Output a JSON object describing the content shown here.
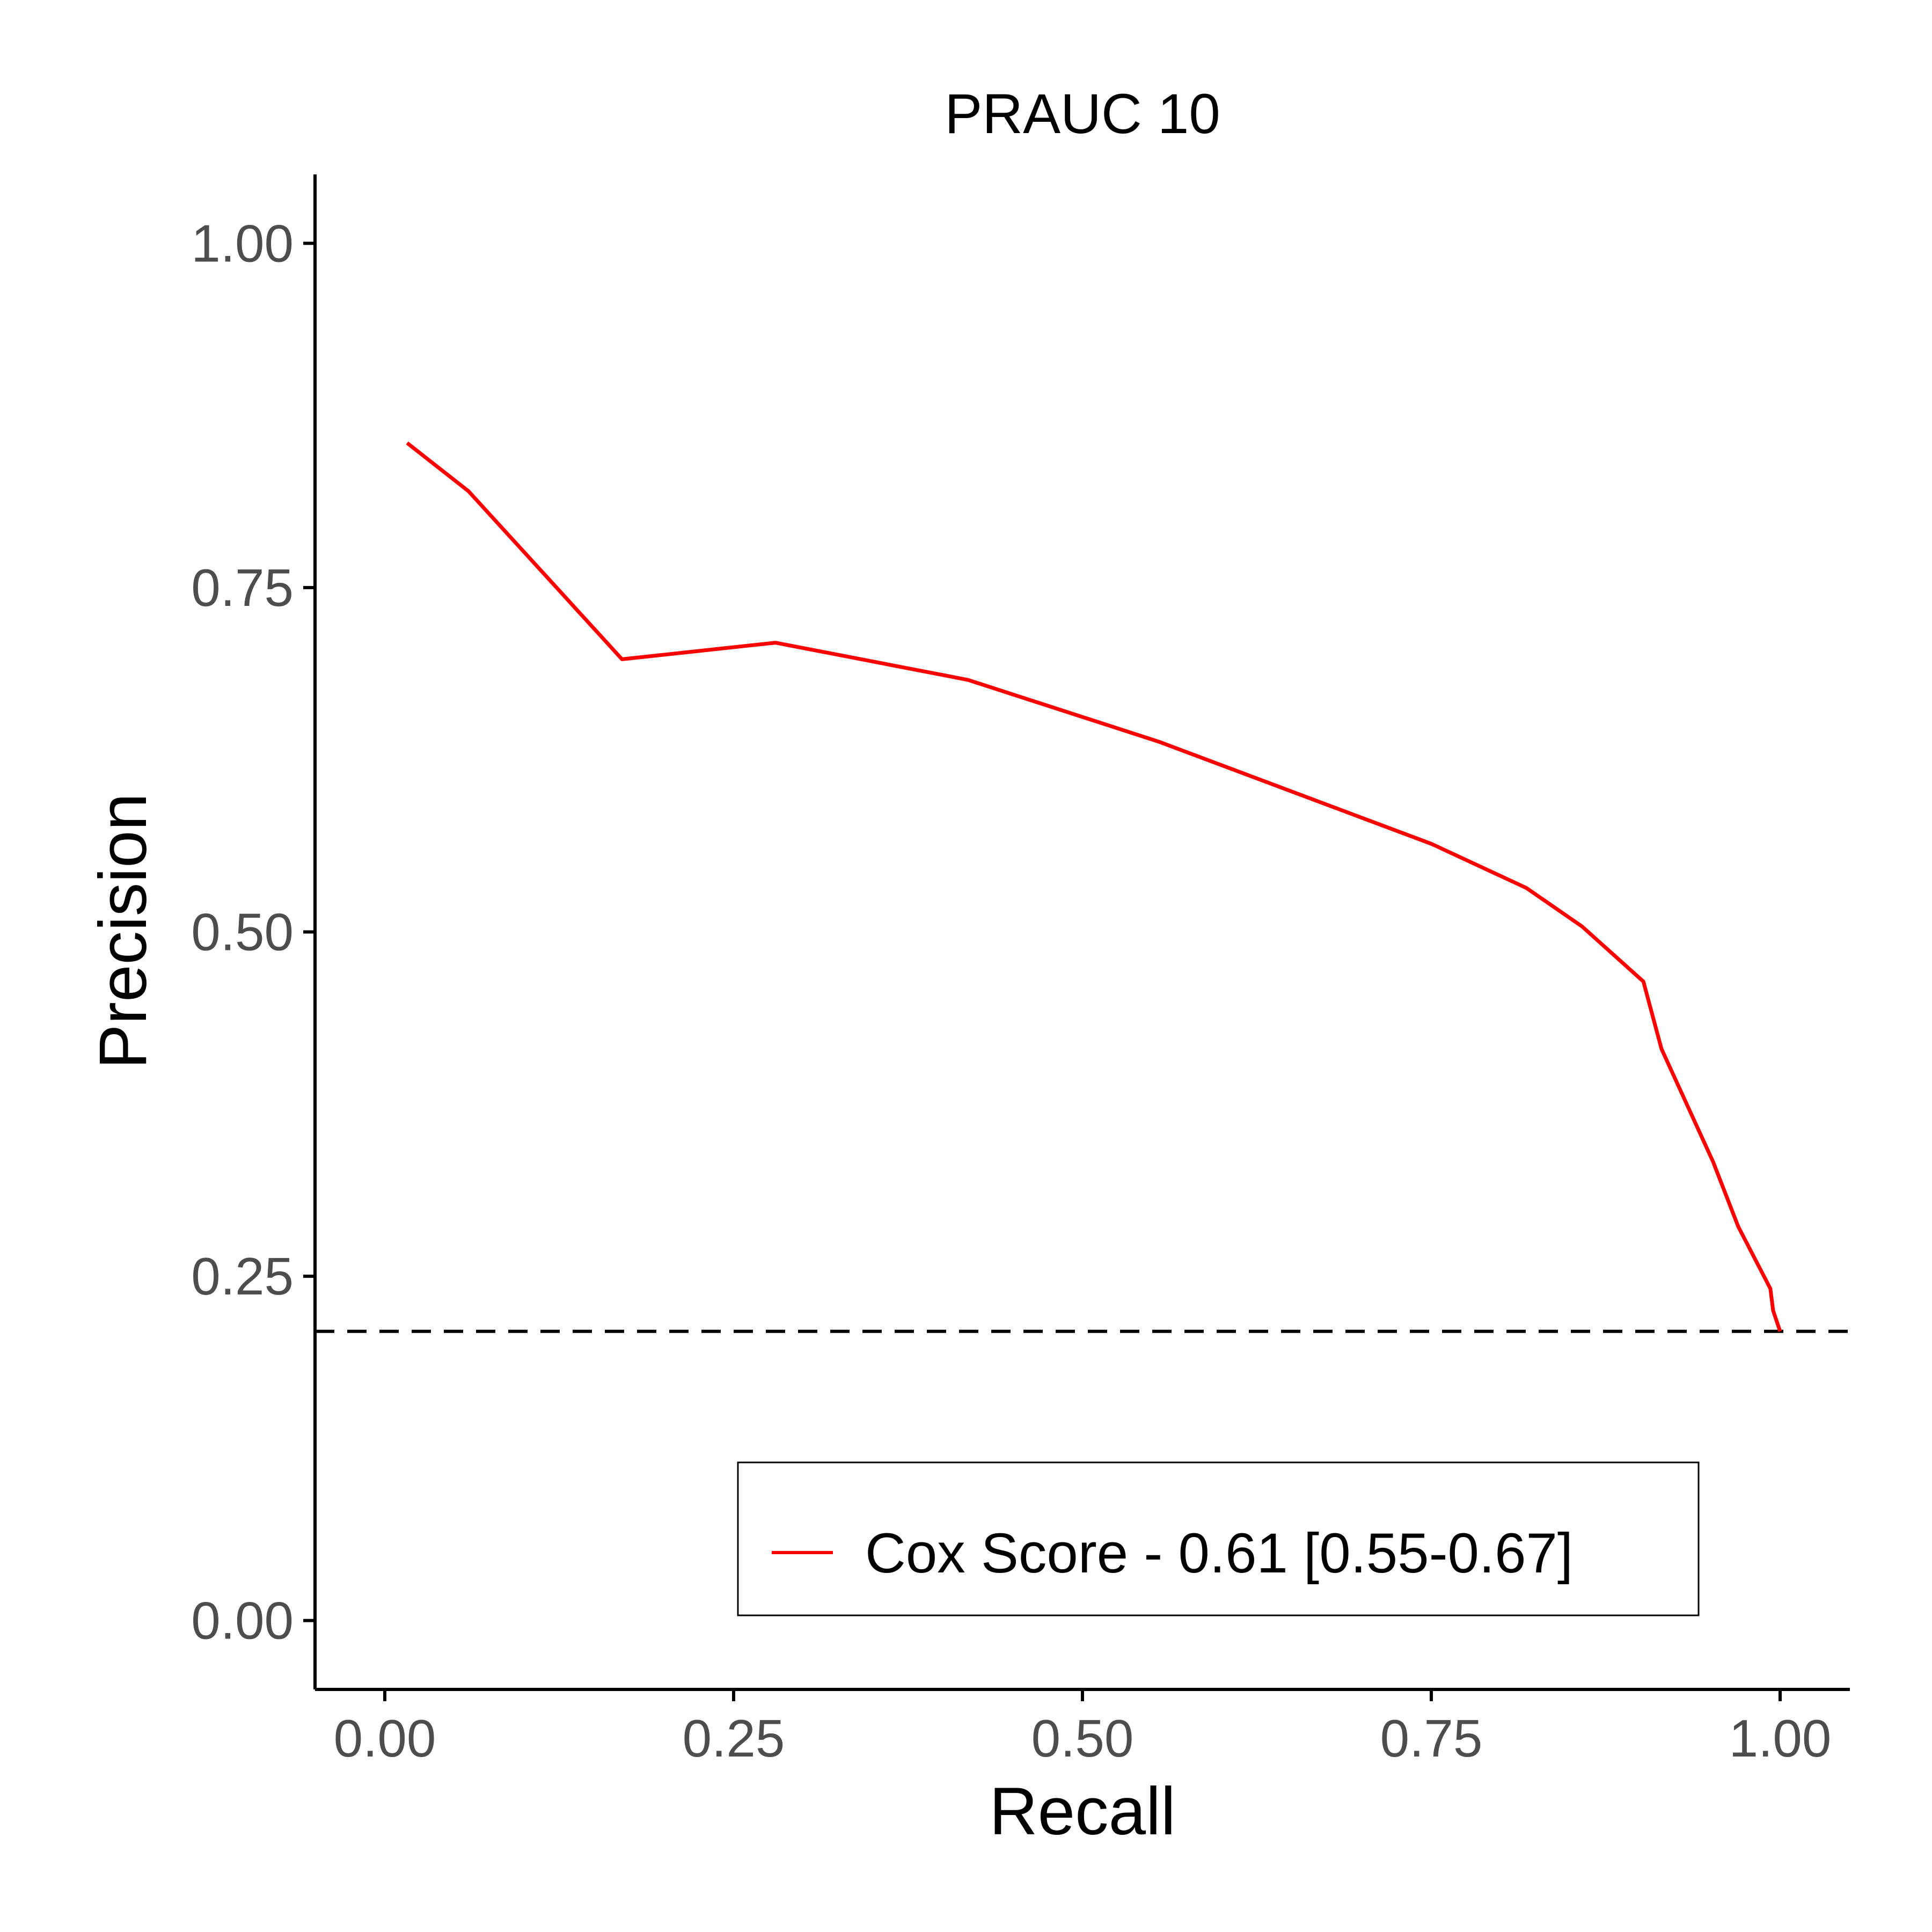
{
  "chart_data": {
    "type": "line",
    "title": "PRAUC 10",
    "xlabel": "Recall",
    "ylabel": "Precision",
    "xlim": [
      -0.05,
      1.05
    ],
    "ylim": [
      -0.05,
      1.05
    ],
    "x_ticks": [
      0.0,
      0.25,
      0.5,
      0.75,
      1.0
    ],
    "x_tick_labels": [
      "0.00",
      "0.25",
      "0.50",
      "0.75",
      "1.00"
    ],
    "y_ticks": [
      0.0,
      0.25,
      0.5,
      0.75,
      1.0
    ],
    "y_tick_labels": [
      "0.00",
      "0.25",
      "0.50",
      "0.75",
      "1.00"
    ],
    "grid": false,
    "baseline": {
      "y": 0.21,
      "style": "dashed",
      "color": "#000000"
    },
    "legend": {
      "position": "bottom-right",
      "entries": [
        "Cox Score -  0.61 [0.55-0.67]"
      ]
    },
    "series": [
      {
        "name": "Cox Score -  0.61 [0.55-0.67]",
        "color": "#ff0000",
        "x": [
          0.016,
          0.06,
          0.17,
          0.28,
          0.418,
          0.555,
          0.75,
          0.818,
          0.858,
          0.902,
          0.915,
          0.952,
          0.97,
          0.993,
          0.995,
          1.0
        ],
        "y": [
          0.855,
          0.82,
          0.698,
          0.71,
          0.683,
          0.638,
          0.564,
          0.532,
          0.504,
          0.464,
          0.415,
          0.333,
          0.286,
          0.241,
          0.225,
          0.21
        ]
      }
    ]
  }
}
